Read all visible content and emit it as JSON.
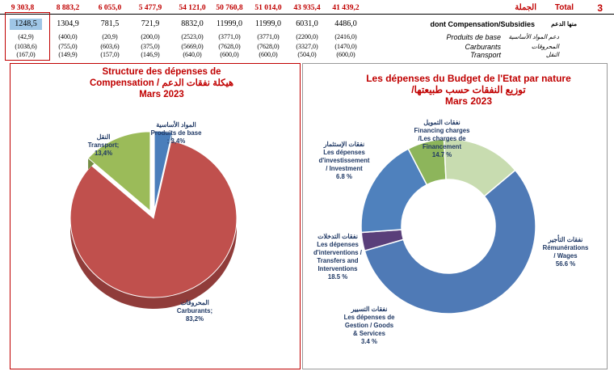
{
  "table": {
    "total_row": {
      "values": [
        "9 303,8",
        "8 883,2",
        "6 055,0",
        "5 477,9",
        "54 121,0",
        "50 760,8",
        "51 014,0",
        "43 935,4",
        "41 439,2"
      ],
      "label_fr": "Total",
      "label_ar": "الجملة",
      "number": "3"
    },
    "sub_row": {
      "values": [
        "1248,5",
        "1304,9",
        "781,5",
        "721,9",
        "8832,0",
        "11999,0",
        "11999,0",
        "6031,0",
        "4486,0"
      ],
      "label": "dont Compensation/Subsidies",
      "label_ar": "منها الدعم"
    },
    "detail_rows": [
      {
        "values": [
          "(42,9)",
          "(400,0)",
          "(20,9)",
          "(200,0)",
          "(2523,0)",
          "(3771,0)",
          "(3771,0)",
          "(2200,0)",
          "(2416,0)"
        ],
        "label": "Produits de base",
        "label_ar": "دعم المواد الأساسية"
      },
      {
        "values": [
          "(1038,6)",
          "(755,0)",
          "(603,6)",
          "(375,0)",
          "(5669,0)",
          "(7628,0)",
          "(7628,0)",
          "(3327,0)",
          "(1470,0)"
        ],
        "label": "Carburants",
        "label_ar": "المحروقات"
      },
      {
        "values": [
          "(167,0)",
          "(149,9)",
          "(157,0)",
          "(146,9)",
          "(640,0)",
          "(600,0)",
          "(600,0)",
          "(504,0)",
          "(600,0)"
        ],
        "label": "Transport",
        "label_ar": "النقل"
      }
    ]
  },
  "chart_data": [
    {
      "type": "pie",
      "title_line1": "Structure des dépenses de",
      "title_line2": "Compensation / هيكلة نفقات الدعم",
      "title_line3": "Mars  2023",
      "slices": [
        {
          "name": "Produits de base",
          "name_ar": "المواد الأساسية",
          "value": 3.4,
          "label": "Produits de base",
          "pct_label": "; 3,4%",
          "color": "#4a7ebb"
        },
        {
          "name": "Carburants",
          "name_ar": "المحروقات",
          "value": 83.2,
          "label": "Carburants;",
          "pct_label": "83,2%",
          "color": "#c0504d"
        },
        {
          "name": "Transport",
          "name_ar": "النقل",
          "value": 13.4,
          "label": "Transport;",
          "pct_label": "13,4%",
          "color": "#9bbb59"
        }
      ]
    },
    {
      "type": "pie",
      "title_line1": "Les dépenses du Budget de l'Etat par nature",
      "title_line2": "/توزيع النفقات حسب طبيعتها",
      "title_line3": "Mars 2023",
      "slices": [
        {
          "name": "Rémunérations / Wages",
          "name_ar": "نفقات التأجير",
          "value": 56.6,
          "lines": [
            "Rémunérations",
            "/ Wages"
          ],
          "pct_label": "56.6 %",
          "color": "#4f7ab6"
        },
        {
          "name": "Les dépenses de Gestion / Goods & Services",
          "name_ar": "نفقات التسيير",
          "value": 3.4,
          "lines": [
            "Les dépenses de",
            "Gestion /  Goods",
            "& Services"
          ],
          "pct_label": "3.4 %",
          "color": "#5a3f7a"
        },
        {
          "name": "Les dépenses d'interventions / Transfers and Interventions",
          "name_ar": "نفقات التدخلات",
          "value": 18.5,
          "lines": [
            "Les dépenses",
            "d'interventions  /",
            "Transfers and",
            "Interventions"
          ],
          "pct_label": "18.5 %",
          "color": "#4f81bd"
        },
        {
          "name": "Les dépenses d'investissement / Investment",
          "name_ar": "نفقات الإستثمار",
          "value": 6.8,
          "lines": [
            "Les dépenses",
            "d'investissement",
            "/   Investment"
          ],
          "pct_label": "6.8 %",
          "color": "#8db55b"
        },
        {
          "name": "Financing charges / Les charges de Financement",
          "name_ar": "نفقات التمويل",
          "value": 14.7,
          "lines": [
            "Financing charges",
            "/Les charges de",
            "Financement"
          ],
          "pct_label": "14.7 %",
          "color": "#c8dcb0"
        }
      ]
    }
  ]
}
